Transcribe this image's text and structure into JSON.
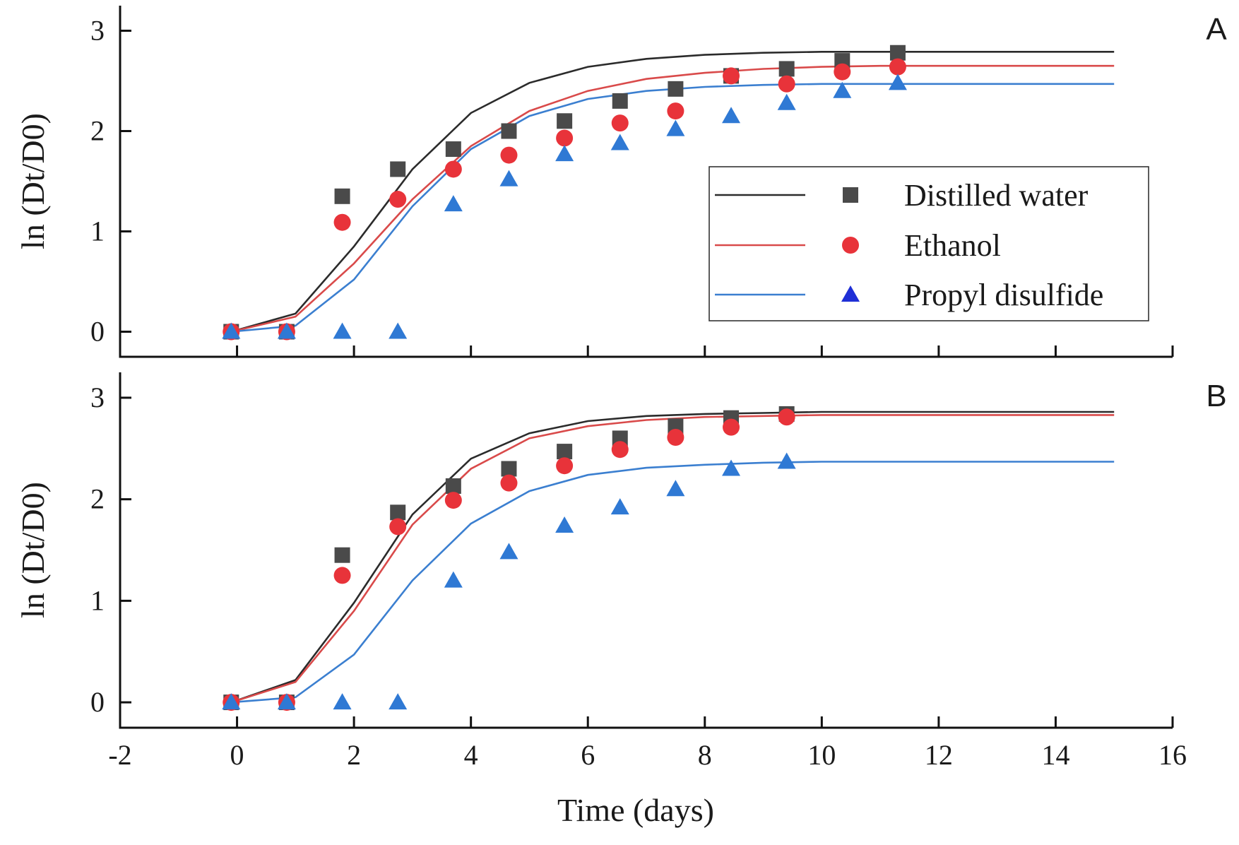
{
  "colors": {
    "distilled_line": "#2b2b2b",
    "distilled_marker": "#4a4a4a",
    "ethanol_line": "#d94a4a",
    "ethanol_marker": "#e8333a",
    "propyl_line": "#3b7fd0",
    "propyl_marker": "#2f79d4",
    "propyl_legend_marker": "#1f2fd6"
  },
  "legend": {
    "distilled": "Distilled water",
    "ethanol": "Ethanol",
    "propyl": "Propyl disulfide"
  },
  "chart_data": [
    {
      "type": "scatter",
      "panel": "A",
      "xlabel": "",
      "ylabel": "ln (Dt/D0)",
      "xlim": [
        -2,
        16
      ],
      "ylim": [
        -0.25,
        3.25
      ],
      "xticks": [
        -2,
        0,
        2,
        4,
        6,
        8,
        10,
        12,
        14,
        16
      ],
      "yticks": [
        0,
        1,
        2,
        3
      ],
      "legend_position": "center-right",
      "series": [
        {
          "name": "Distilled water",
          "key": "distilled",
          "x": [
            -0.1,
            0.85,
            1.8,
            2.75,
            3.7,
            4.65,
            5.6,
            6.55,
            7.5,
            8.45,
            9.4,
            10.35,
            11.3
          ],
          "y": [
            0,
            0,
            1.35,
            1.62,
            1.82,
            2.0,
            2.1,
            2.3,
            2.42,
            2.55,
            2.62,
            2.7,
            2.78
          ],
          "fit_x": [
            -0.1,
            1,
            2,
            3,
            4,
            5,
            6,
            7,
            8,
            9,
            10,
            11,
            12,
            13,
            14,
            15
          ],
          "fit_y": [
            0,
            0.18,
            0.85,
            1.62,
            2.18,
            2.48,
            2.64,
            2.72,
            2.76,
            2.78,
            2.79,
            2.79,
            2.79,
            2.79,
            2.79,
            2.79
          ]
        },
        {
          "name": "Ethanol",
          "key": "ethanol",
          "x": [
            -0.1,
            0.85,
            1.8,
            2.75,
            3.7,
            4.65,
            5.6,
            6.55,
            7.5,
            8.45,
            9.4,
            10.35,
            11.3
          ],
          "y": [
            0,
            0,
            1.09,
            1.32,
            1.62,
            1.76,
            1.93,
            2.08,
            2.2,
            2.55,
            2.47,
            2.59,
            2.64
          ],
          "fit_x": [
            -0.1,
            1,
            2,
            3,
            4,
            5,
            6,
            7,
            8,
            9,
            10,
            11,
            12,
            13,
            14,
            15
          ],
          "fit_y": [
            0,
            0.15,
            0.68,
            1.32,
            1.85,
            2.2,
            2.4,
            2.52,
            2.58,
            2.62,
            2.64,
            2.65,
            2.65,
            2.65,
            2.65,
            2.65
          ]
        },
        {
          "name": "Propyl disulfide",
          "key": "propyl",
          "x": [
            -0.1,
            0.85,
            1.8,
            2.75,
            3.7,
            4.65,
            5.6,
            6.55,
            7.5,
            8.45,
            9.4,
            10.35,
            11.3
          ],
          "y": [
            0,
            0,
            0,
            0,
            1.27,
            1.52,
            1.77,
            1.88,
            2.02,
            2.15,
            2.28,
            2.4,
            2.48
          ],
          "fit_x": [
            -0.1,
            1,
            2,
            3,
            4,
            5,
            6,
            7,
            8,
            9,
            10,
            11,
            12,
            13,
            14,
            15
          ],
          "fit_y": [
            0,
            0.06,
            0.52,
            1.25,
            1.82,
            2.15,
            2.32,
            2.4,
            2.44,
            2.46,
            2.47,
            2.47,
            2.47,
            2.47,
            2.47,
            2.47
          ]
        }
      ]
    },
    {
      "type": "scatter",
      "panel": "B",
      "xlabel": "Time (days)",
      "ylabel": "ln (Dt/D0)",
      "xlim": [
        -2,
        16
      ],
      "ylim": [
        -0.25,
        3.25
      ],
      "xticks": [
        -2,
        0,
        2,
        4,
        6,
        8,
        10,
        12,
        14,
        16
      ],
      "yticks": [
        0,
        1,
        2,
        3
      ],
      "series": [
        {
          "name": "Distilled water",
          "key": "distilled",
          "x": [
            -0.1,
            0.85,
            1.8,
            2.75,
            3.7,
            4.65,
            5.6,
            6.55,
            7.5,
            8.45,
            9.4
          ],
          "y": [
            0,
            0,
            1.45,
            1.87,
            2.13,
            2.3,
            2.47,
            2.6,
            2.72,
            2.8,
            2.84
          ],
          "fit_x": [
            -0.1,
            1,
            2,
            3,
            4,
            5,
            6,
            7,
            8,
            9,
            10,
            11,
            12,
            13,
            14,
            15
          ],
          "fit_y": [
            0,
            0.22,
            0.98,
            1.85,
            2.4,
            2.65,
            2.77,
            2.82,
            2.84,
            2.85,
            2.86,
            2.86,
            2.86,
            2.86,
            2.86,
            2.86
          ]
        },
        {
          "name": "Ethanol",
          "key": "ethanol",
          "x": [
            -0.1,
            0.85,
            1.8,
            2.75,
            3.7,
            4.65,
            5.6,
            6.55,
            7.5,
            8.45,
            9.4
          ],
          "y": [
            0,
            0,
            1.25,
            1.73,
            1.99,
            2.16,
            2.33,
            2.49,
            2.61,
            2.71,
            2.81
          ],
          "fit_x": [
            -0.1,
            1,
            2,
            3,
            4,
            5,
            6,
            7,
            8,
            9,
            10,
            11,
            12,
            13,
            14,
            15
          ],
          "fit_y": [
            0,
            0.2,
            0.9,
            1.75,
            2.3,
            2.6,
            2.72,
            2.78,
            2.81,
            2.82,
            2.83,
            2.83,
            2.83,
            2.83,
            2.83,
            2.83
          ]
        },
        {
          "name": "Propyl disulfide",
          "key": "propyl",
          "x": [
            -0.1,
            0.85,
            1.8,
            2.75,
            3.7,
            4.65,
            5.6,
            6.55,
            7.5,
            8.45,
            9.4
          ],
          "y": [
            0,
            0,
            0,
            0,
            1.2,
            1.48,
            1.74,
            1.92,
            2.1,
            2.3,
            2.37
          ],
          "fit_x": [
            -0.1,
            1,
            2,
            3,
            4,
            5,
            6,
            7,
            8,
            9,
            10,
            11,
            12,
            13,
            14,
            15
          ],
          "fit_y": [
            0,
            0.05,
            0.47,
            1.2,
            1.76,
            2.08,
            2.24,
            2.31,
            2.34,
            2.36,
            2.37,
            2.37,
            2.37,
            2.37,
            2.37,
            2.37
          ]
        }
      ]
    }
  ]
}
